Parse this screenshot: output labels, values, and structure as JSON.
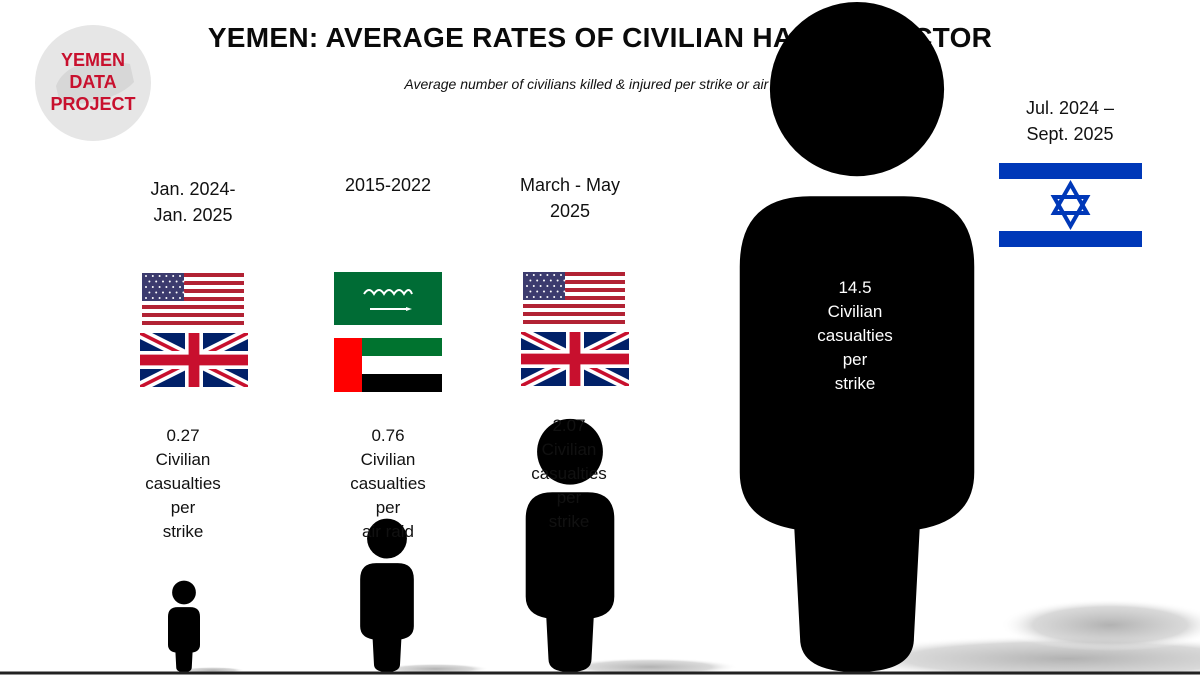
{
  "logo": {
    "line1": "YEMEN",
    "line2": "DATA",
    "line3": "PROJECT",
    "color": "#c8102e"
  },
  "title": "YEMEN: AVERAGE RATES OF CIVILIAN HARM BY ACTOR",
  "subtitle": "Average number of civilians killed & injured per strike or air raid",
  "chart_data": {
    "type": "bar",
    "categories": [
      "Jan. 2024-Jan. 2025",
      "2015-2022",
      "March - May 2025",
      "Jul. 2024 – Sept. 2025"
    ],
    "values": [
      0.27,
      0.76,
      2.07,
      14.5
    ],
    "units": [
      "Civilian casualties per strike",
      "Civilian casualties per air raid",
      "Civilian casualties per strike",
      "Civilian casualties per strike"
    ],
    "mark": "human-silhouette"
  },
  "groups": [
    {
      "period1": "Jan. 2024-",
      "period2": "Jan. 2025",
      "flags": [
        "us-flag",
        "uk-flag"
      ],
      "value": "0.27",
      "l1": "Civilian",
      "l2": "casualties",
      "l3": "per",
      "l4": "strike"
    },
    {
      "period1": "2015-2022",
      "period2": "",
      "flags": [
        "saudi-flag",
        "uae-flag"
      ],
      "value": "0.76",
      "l1": "Civilian",
      "l2": "casualties",
      "l3": "per",
      "l4": "air raid"
    },
    {
      "period1": "March - May",
      "period2": "2025",
      "flags": [
        "us-flag",
        "uk-flag"
      ],
      "value": "2.07",
      "l1": "Civilian",
      "l2": "casualties",
      "l3": "per",
      "l4": "strike"
    },
    {
      "period1": "Jul. 2024 –",
      "period2": "Sept. 2025",
      "flags": [
        "israel-flag"
      ],
      "value": "14.5",
      "l1": "Civilian",
      "l2": "casualties",
      "l3": "per",
      "l4": "strike"
    }
  ]
}
